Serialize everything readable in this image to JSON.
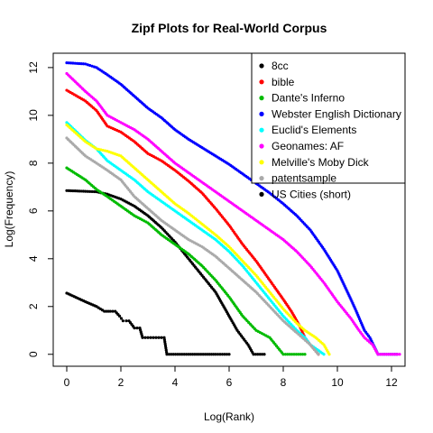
{
  "chart_data": {
    "type": "scatter",
    "title": "Zipf Plots for Real-World Corpus",
    "xlabel": "Log(Rank)",
    "ylabel": "Log(Frequency)",
    "xlim": [
      -0.5,
      12.5
    ],
    "ylim": [
      -0.5,
      12.6
    ],
    "xticks": [
      0,
      2,
      4,
      6,
      8,
      10,
      12
    ],
    "yticks": [
      0,
      2,
      4,
      6,
      8,
      10,
      12
    ],
    "grid": false,
    "legend_position": "top-right",
    "series": [
      {
        "name": "8cc",
        "color": "#000000",
        "points": [
          [
            0,
            6.85
          ],
          [
            0.69,
            6.82
          ],
          [
            1.1,
            6.8
          ],
          [
            1.5,
            6.7
          ],
          [
            2,
            6.5
          ],
          [
            2.5,
            6.2
          ],
          [
            3,
            5.8
          ],
          [
            3.5,
            5.3
          ],
          [
            4,
            4.7
          ],
          [
            4.5,
            4.0
          ],
          [
            5,
            3.3
          ],
          [
            5.5,
            2.6
          ],
          [
            5.8,
            2.0
          ],
          [
            6.1,
            1.4
          ],
          [
            6.3,
            1.0
          ],
          [
            6.5,
            0.7
          ],
          [
            6.7,
            0.4
          ],
          [
            6.9,
            0
          ],
          [
            7.3,
            0
          ]
        ]
      },
      {
        "name": "bible",
        "color": "#ff0000",
        "points": [
          [
            0,
            11.05
          ],
          [
            0.69,
            10.6
          ],
          [
            1.1,
            10.2
          ],
          [
            1.5,
            9.55
          ],
          [
            2,
            9.3
          ],
          [
            2.5,
            8.9
          ],
          [
            3,
            8.4
          ],
          [
            3.5,
            8.1
          ],
          [
            4,
            7.7
          ],
          [
            4.5,
            7.25
          ],
          [
            5,
            6.75
          ],
          [
            5.5,
            6.1
          ],
          [
            6,
            5.4
          ],
          [
            6.5,
            4.6
          ],
          [
            7,
            3.9
          ],
          [
            7.5,
            3.1
          ],
          [
            8,
            2.3
          ],
          [
            8.3,
            1.8
          ],
          [
            8.6,
            1.2
          ],
          [
            8.8,
            0.7
          ],
          [
            9.0,
            0.4
          ],
          [
            9.3,
            0
          ]
        ]
      },
      {
        "name": "Dante's Inferno",
        "color": "#00bb00",
        "points": [
          [
            0,
            7.8
          ],
          [
            0.69,
            7.3
          ],
          [
            1.1,
            6.9
          ],
          [
            1.5,
            6.6
          ],
          [
            2,
            6.2
          ],
          [
            2.5,
            5.8
          ],
          [
            3,
            5.5
          ],
          [
            3.5,
            5.0
          ],
          [
            4,
            4.6
          ],
          [
            4.5,
            4.2
          ],
          [
            5,
            3.7
          ],
          [
            5.5,
            3.1
          ],
          [
            6,
            2.4
          ],
          [
            6.5,
            1.6
          ],
          [
            7,
            1.0
          ],
          [
            7.5,
            0.7
          ],
          [
            8,
            0
          ],
          [
            8.8,
            0
          ]
        ]
      },
      {
        "name": "Webster English Dictionary",
        "color": "#0000ff",
        "points": [
          [
            0,
            12.2
          ],
          [
            0.69,
            12.15
          ],
          [
            1.1,
            12.0
          ],
          [
            1.5,
            11.7
          ],
          [
            2,
            11.3
          ],
          [
            2.5,
            10.8
          ],
          [
            3,
            10.3
          ],
          [
            3.5,
            9.9
          ],
          [
            4,
            9.4
          ],
          [
            4.5,
            9.0
          ],
          [
            5,
            8.65
          ],
          [
            5.5,
            8.3
          ],
          [
            6,
            7.95
          ],
          [
            6.5,
            7.55
          ],
          [
            7,
            7.15
          ],
          [
            7.5,
            6.75
          ],
          [
            8,
            6.3
          ],
          [
            8.5,
            5.8
          ],
          [
            9,
            5.2
          ],
          [
            9.5,
            4.4
          ],
          [
            10,
            3.5
          ],
          [
            10.5,
            2.3
          ],
          [
            10.7,
            1.8
          ],
          [
            11,
            1.0
          ],
          [
            11.2,
            0.7
          ],
          [
            11.5,
            0
          ],
          [
            12.2,
            0
          ]
        ]
      },
      {
        "name": "Euclid's Elements",
        "color": "#00ffff",
        "points": [
          [
            0,
            9.7
          ],
          [
            0.69,
            8.95
          ],
          [
            1.1,
            8.6
          ],
          [
            1.5,
            8.1
          ],
          [
            2,
            7.7
          ],
          [
            2.5,
            7.3
          ],
          [
            3,
            6.8
          ],
          [
            3.5,
            6.4
          ],
          [
            4,
            6.0
          ],
          [
            4.5,
            5.6
          ],
          [
            5,
            5.2
          ],
          [
            5.5,
            4.8
          ],
          [
            6,
            4.3
          ],
          [
            6.5,
            3.7
          ],
          [
            7,
            3.0
          ],
          [
            7.5,
            2.3
          ],
          [
            8,
            1.6
          ],
          [
            8.5,
            1.0
          ],
          [
            8.8,
            0.7
          ],
          [
            9,
            0.4
          ],
          [
            9.5,
            0
          ]
        ]
      },
      {
        "name": "Geonames: AF",
        "color": "#ff00ff",
        "points": [
          [
            0,
            11.75
          ],
          [
            0.69,
            11.0
          ],
          [
            1.1,
            10.6
          ],
          [
            1.5,
            10.0
          ],
          [
            2,
            9.7
          ],
          [
            2.5,
            9.4
          ],
          [
            3,
            9.0
          ],
          [
            3.5,
            8.5
          ],
          [
            4,
            8.0
          ],
          [
            4.5,
            7.6
          ],
          [
            5,
            7.2
          ],
          [
            5.5,
            6.8
          ],
          [
            6,
            6.4
          ],
          [
            6.5,
            6.0
          ],
          [
            7,
            5.6
          ],
          [
            7.5,
            5.2
          ],
          [
            8,
            4.8
          ],
          [
            8.5,
            4.3
          ],
          [
            9,
            3.7
          ],
          [
            9.5,
            3.0
          ],
          [
            10,
            2.2
          ],
          [
            10.5,
            1.5
          ],
          [
            10.8,
            1.0
          ],
          [
            11,
            0.7
          ],
          [
            11.3,
            0.4
          ],
          [
            11.5,
            0
          ],
          [
            12.3,
            0
          ]
        ]
      },
      {
        "name": "Melville's Moby Dick",
        "color": "#ffff00",
        "points": [
          [
            0,
            9.6
          ],
          [
            0.69,
            8.9
          ],
          [
            1.1,
            8.6
          ],
          [
            1.5,
            8.5
          ],
          [
            2,
            8.3
          ],
          [
            2.5,
            7.8
          ],
          [
            3,
            7.3
          ],
          [
            3.5,
            6.8
          ],
          [
            4,
            6.3
          ],
          [
            4.5,
            5.9
          ],
          [
            5,
            5.45
          ],
          [
            5.5,
            5.0
          ],
          [
            6,
            4.5
          ],
          [
            6.5,
            3.9
          ],
          [
            7,
            3.3
          ],
          [
            7.5,
            2.6
          ],
          [
            8,
            1.9
          ],
          [
            8.5,
            1.3
          ],
          [
            8.8,
            1.0
          ],
          [
            9.2,
            0.7
          ],
          [
            9.5,
            0.4
          ],
          [
            9.7,
            0
          ]
        ]
      },
      {
        "name": "patentsample",
        "color": "#aaaaaa",
        "points": [
          [
            0,
            9.05
          ],
          [
            0.69,
            8.3
          ],
          [
            1.1,
            8.0
          ],
          [
            1.5,
            7.7
          ],
          [
            2,
            7.3
          ],
          [
            2.5,
            6.6
          ],
          [
            3,
            6.1
          ],
          [
            3.5,
            5.6
          ],
          [
            4,
            5.2
          ],
          [
            4.5,
            4.8
          ],
          [
            5,
            4.5
          ],
          [
            5.5,
            4.1
          ],
          [
            6,
            3.6
          ],
          [
            6.5,
            3.1
          ],
          [
            7,
            2.6
          ],
          [
            7.5,
            2.0
          ],
          [
            8,
            1.4
          ],
          [
            8.5,
            0.9
          ],
          [
            8.7,
            0.7
          ],
          [
            9,
            0.4
          ],
          [
            9.3,
            0
          ]
        ]
      },
      {
        "name": "US Cities (short)",
        "color": "#000000",
        "points": [
          [
            0,
            2.56
          ],
          [
            0.69,
            2.2
          ],
          [
            1.1,
            2.0
          ],
          [
            1.39,
            1.8
          ],
          [
            1.61,
            1.8
          ],
          [
            1.79,
            1.8
          ],
          [
            1.95,
            1.6
          ],
          [
            2.08,
            1.4
          ],
          [
            2.2,
            1.4
          ],
          [
            2.3,
            1.4
          ],
          [
            2.5,
            1.1
          ],
          [
            2.7,
            1.1
          ],
          [
            2.8,
            0.7
          ],
          [
            3.0,
            0.7
          ],
          [
            3.2,
            0.7
          ],
          [
            3.4,
            0.7
          ],
          [
            3.6,
            0.7
          ],
          [
            3.7,
            0
          ],
          [
            4.5,
            0
          ],
          [
            5.5,
            0
          ],
          [
            6.0,
            0
          ]
        ]
      }
    ]
  }
}
